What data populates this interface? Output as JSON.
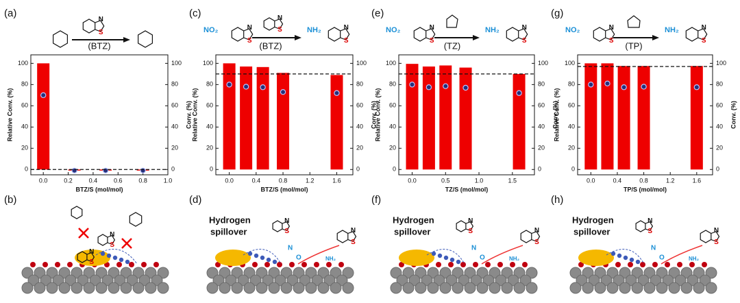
{
  "panel_labels": [
    "(a)",
    "(b)",
    "(c)",
    "(d)",
    "(e)",
    "(f)",
    "(g)",
    "(h)"
  ],
  "atom_labels": {
    "S": "S",
    "N": "N",
    "O": "O"
  },
  "schemes": [
    {
      "reagent": "(BTZ)"
    },
    {
      "reactant": "NO₂",
      "reagent": "(BTZ)",
      "product": "NH₂"
    },
    {
      "reactant": "NO₂",
      "reagent": "(TZ)",
      "product": "NH₂"
    },
    {
      "reactant": "NO₂",
      "reagent": "(TP)",
      "product": "NH₂"
    }
  ],
  "spillover_label": [
    "Hydrogen",
    "spillover"
  ],
  "surface_product": "NH₂",
  "chart_data": [
    {
      "type": "bar",
      "x_label": "BTZ/S (mol/mol)",
      "y_label": "Relative Conv. (%)",
      "y2_label": "Conv. (%)",
      "x": [
        0,
        0.25,
        0.5,
        0.8
      ],
      "series": [
        {
          "type": "bar",
          "color": "#ee0000",
          "values": [
            100,
            -1,
            -1,
            -1
          ]
        },
        {
          "type": "scatter",
          "color": "#26307a",
          "axis": "y2",
          "values": [
            70,
            -1,
            -1,
            -1
          ]
        }
      ],
      "xlim": [
        -0.1,
        1.0
      ],
      "xticks": [
        {
          "value": 0,
          "label": "0.0"
        },
        {
          "value": 0.2,
          "label": "0.2"
        },
        {
          "value": 0.4,
          "label": "0.4"
        },
        {
          "value": 0.6,
          "label": "0.6"
        },
        {
          "value": 0.8,
          "label": "0.8"
        },
        {
          "value": 1.0,
          "label": "1.0"
        }
      ],
      "ylim": [
        -5,
        108
      ],
      "yticks": [
        0,
        20,
        40,
        60,
        80,
        100
      ],
      "y2lim": [
        -5,
        108
      ],
      "y2ticks": [
        0,
        20,
        40,
        60,
        80,
        100
      ],
      "reference_line": 0
    },
    {
      "type": "bar",
      "x_label": "BTZ/S (mol/mol)",
      "y_label": "Relative Conv. (%)",
      "y2_label": "Conv. (%)",
      "x": [
        0,
        0.25,
        0.5,
        0.8,
        1.6
      ],
      "series": [
        {
          "type": "bar",
          "color": "#ee0000",
          "values": [
            100,
            97,
            96.5,
            91,
            89
          ]
        },
        {
          "type": "scatter",
          "color": "#26307a",
          "axis": "y2",
          "values": [
            80,
            78,
            77.5,
            73,
            72
          ]
        }
      ],
      "xlim": [
        -0.2,
        1.84
      ],
      "xticks": [
        {
          "value": 0,
          "label": "0.0"
        },
        {
          "value": 0.4,
          "label": "0.4"
        },
        {
          "value": 0.8,
          "label": "0.8"
        },
        {
          "value": 1.2,
          "label": "1.2"
        },
        {
          "value": 1.6,
          "label": "1.6"
        }
      ],
      "ylim": [
        -5,
        108
      ],
      "yticks": [
        0,
        20,
        40,
        60,
        80,
        100
      ],
      "y2lim": [
        -5,
        108
      ],
      "y2ticks": [
        0,
        20,
        40,
        60,
        80,
        100
      ],
      "reference_line": 90
    },
    {
      "type": "bar",
      "x_label": "TZ/S (mol/mol)",
      "y_label": "Relative Conv. (%)",
      "y2_label": "Conv. (%)",
      "x": [
        0,
        0.25,
        0.5,
        0.8,
        1.6
      ],
      "series": [
        {
          "type": "bar",
          "color": "#ee0000",
          "values": [
            99.5,
            97,
            98,
            96,
            90
          ]
        },
        {
          "type": "scatter",
          "color": "#26307a",
          "axis": "y2",
          "values": [
            80,
            77.5,
            78.5,
            77,
            72
          ]
        }
      ],
      "xlim": [
        -0.2,
        1.83
      ],
      "xticks": [
        {
          "value": 0,
          "label": "0.0"
        },
        {
          "value": 0.5,
          "label": "0.5"
        },
        {
          "value": 1.0,
          "label": "1.0"
        },
        {
          "value": 1.5,
          "label": "1.5"
        }
      ],
      "ylim": [
        -5,
        108
      ],
      "yticks": [
        0,
        20,
        40,
        60,
        80,
        100
      ],
      "y2lim": [
        -5,
        108
      ],
      "y2ticks": [
        0,
        20,
        40,
        60,
        80,
        100
      ],
      "reference_line": 90
    },
    {
      "type": "bar",
      "x_label": "TP/S (mol/mol)",
      "y_label": "Relative Conv. (%)",
      "y2_label": "Conv. (%)",
      "x": [
        0,
        0.25,
        0.5,
        0.8,
        1.6
      ],
      "series": [
        {
          "type": "bar",
          "color": "#ee0000",
          "values": [
            100,
            100,
            97.5,
            97.5,
            97.5
          ]
        },
        {
          "type": "scatter",
          "color": "#26307a",
          "axis": "y2",
          "values": [
            80,
            81,
            77.5,
            78,
            77.5
          ]
        }
      ],
      "xlim": [
        -0.2,
        1.84
      ],
      "xticks": [
        {
          "value": 0,
          "label": "0.0"
        },
        {
          "value": 0.4,
          "label": "0.4"
        },
        {
          "value": 0.8,
          "label": "0.8"
        },
        {
          "value": 1.2,
          "label": "1.2"
        },
        {
          "value": 1.6,
          "label": "1.6"
        }
      ],
      "ylim": [
        -5,
        108
      ],
      "yticks": [
        0,
        20,
        40,
        60,
        80,
        100
      ],
      "y2lim": [
        -5,
        108
      ],
      "y2ticks": [
        0,
        20,
        40,
        60,
        80,
        100
      ],
      "reference_line": 97
    }
  ]
}
